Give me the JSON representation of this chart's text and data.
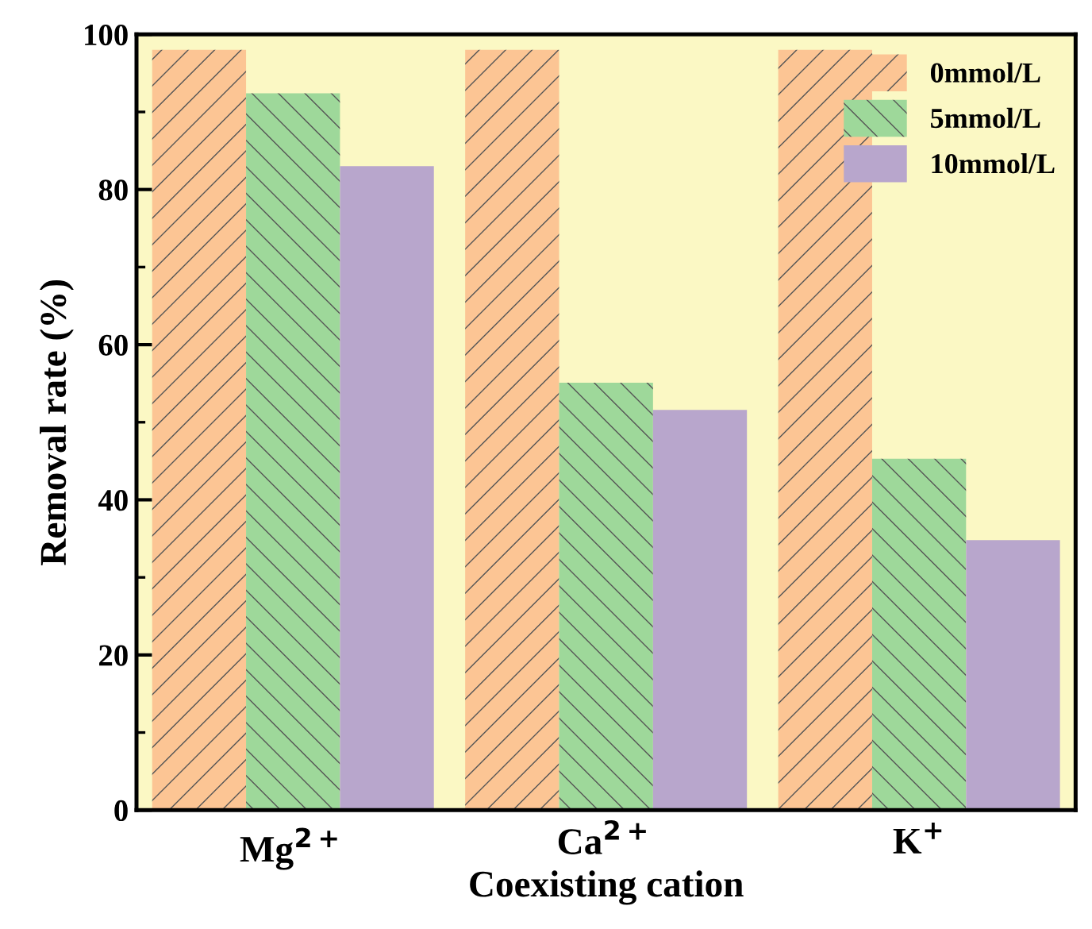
{
  "chart_data": {
    "type": "bar",
    "xlabel": "Coexisting cation",
    "ylabel": "Removal rate (%)",
    "categories": [
      "Mg$^{2+}$",
      "Ca$^{2+}$",
      "K$^{+}$"
    ],
    "series": [
      {
        "name": "0mmol/L",
        "color": "#fcc594",
        "values": [
          98,
          98,
          98
        ]
      },
      {
        "name": "5mmol/L",
        "color": "#9ed89a",
        "values": [
          92.4,
          55.1,
          45.3
        ]
      },
      {
        "name": "10mmol/L",
        "color": "#b8a6cc",
        "values": [
          83,
          51.6,
          34.8
        ]
      }
    ],
    "ylim": [
      0,
      100
    ],
    "yticks": [
      0,
      20,
      40,
      60,
      80,
      100
    ],
    "grid": false,
    "legend": "top right"
  }
}
